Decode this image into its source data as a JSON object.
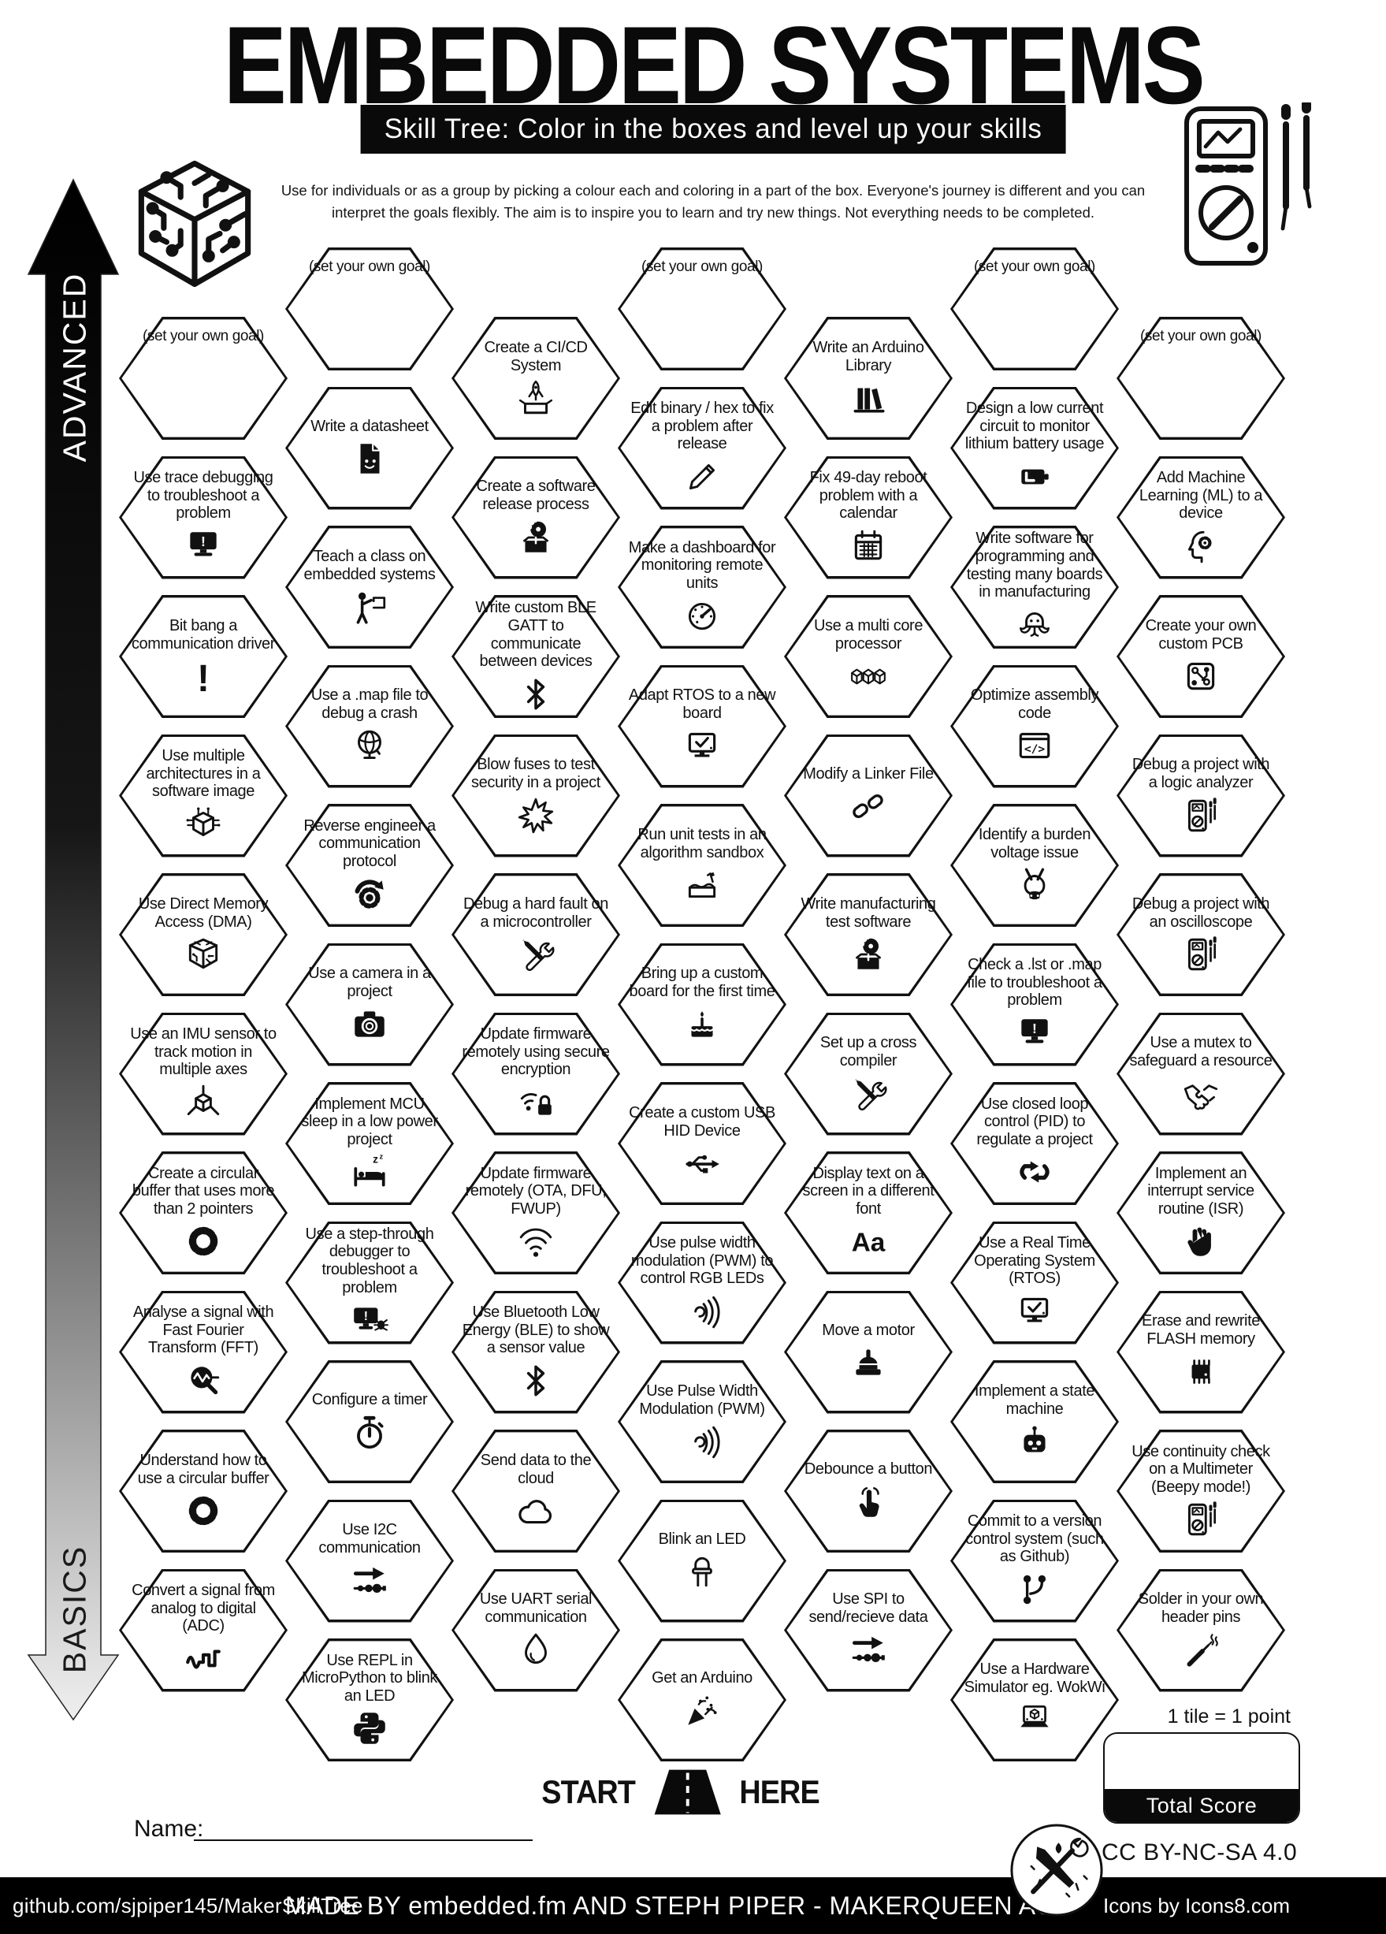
{
  "header": {
    "title": "EMBEDDED SYSTEMS",
    "subtitle": "Skill Tree:  Color in the boxes and level up your skills",
    "intro_line1": "Use for individuals or as a group by picking a colour each and coloring in a part of the box.  Everyone's journey is different and you can",
    "intro_line2": "interpret the goals flexibly.  The aim is to inspire you to learn and try new things. Not everything needs to be completed."
  },
  "side": {
    "advanced": "ADVANCED",
    "basics": "BASICS"
  },
  "goal_label": "(set your own goal)",
  "hexes": [
    {
      "col": 1,
      "row": 0,
      "goal": true,
      "label": "(set your own goal)",
      "icon": ""
    },
    {
      "col": 1,
      "row": 1,
      "label": "Use trace debugging to troubleshoot a problem",
      "icon": "monitor-alert"
    },
    {
      "col": 1,
      "row": 2,
      "label": "Bit bang a communication driver",
      "icon": "exclamation"
    },
    {
      "col": 1,
      "row": 3,
      "label": "Use multiple architectures in a software image",
      "icon": "arch-cube"
    },
    {
      "col": 1,
      "row": 4,
      "label": "Use Direct Memory Access (DMA)",
      "icon": "circuit-cube"
    },
    {
      "col": 1,
      "row": 5,
      "label": "Use an IMU sensor to track motion in multiple axes",
      "icon": "axis-cube"
    },
    {
      "col": 1,
      "row": 6,
      "label": "Create a circular buffer that uses more than 2 pointers",
      "icon": "ring"
    },
    {
      "col": 1,
      "row": 7,
      "label": "Analyse a signal with Fast Fourier Transform (FFT)",
      "icon": "fft"
    },
    {
      "col": 1,
      "row": 8,
      "label": "Understand how to use a circular buffer",
      "icon": "ring"
    },
    {
      "col": 1,
      "row": 9,
      "label": "Convert a signal from analog to digital (ADC)",
      "icon": "adc-wave"
    },
    {
      "col": 2,
      "row": 0,
      "goal": true,
      "label": "(set your own goal)",
      "icon": ""
    },
    {
      "col": 2,
      "row": 1,
      "label": "Write a datasheet",
      "icon": "doc-face"
    },
    {
      "col": 2,
      "row": 2,
      "label": "Teach a class on embedded systems",
      "icon": "teacher"
    },
    {
      "col": 2,
      "row": 3,
      "label": "Use a .map file to debug a crash",
      "icon": "globe"
    },
    {
      "col": 2,
      "row": 4,
      "label": "Reverse engineer a communication protocol",
      "icon": "gear-arrows"
    },
    {
      "col": 2,
      "row": 5,
      "label": "Use a camera in a project",
      "icon": "camera"
    },
    {
      "col": 2,
      "row": 6,
      "label": "Implement MCU sleep in a low power project",
      "icon": "bed"
    },
    {
      "col": 2,
      "row": 7,
      "label": "Use a step-through debugger to troubleshoot a problem",
      "icon": "monitor-bug"
    },
    {
      "col": 2,
      "row": 8,
      "label": "Configure a timer",
      "icon": "stopwatch"
    },
    {
      "col": 2,
      "row": 9,
      "label": "Use I2C communication",
      "icon": "bus-line"
    },
    {
      "col": 2,
      "row": 10,
      "label": "Use REPL in MicroPython to blink an LED",
      "icon": "python"
    },
    {
      "col": 3,
      "row": 0,
      "label": "Create a CI/CD System",
      "icon": "rocket-box"
    },
    {
      "col": 3,
      "row": 1,
      "label": "Create a software release process",
      "icon": "box-disc"
    },
    {
      "col": 3,
      "row": 2,
      "label": "Write custom BLE GATT to communicate between devices",
      "icon": "bluetooth"
    },
    {
      "col": 3,
      "row": 3,
      "label": "Blow fuses to test security in a project",
      "icon": "burst"
    },
    {
      "col": 3,
      "row": 4,
      "label": "Debug a hard fault on a microcontroller",
      "icon": "tools"
    },
    {
      "col": 3,
      "row": 5,
      "label": "Update firmware remotely using secure encryption",
      "icon": "wifi-lock"
    },
    {
      "col": 3,
      "row": 6,
      "label": "Update firmware remotely (OTA, DFU, FWUP)",
      "icon": "wifi"
    },
    {
      "col": 3,
      "row": 7,
      "label": "Use Bluetooth Low Energy (BLE) to show a sensor value",
      "icon": "bluetooth"
    },
    {
      "col": 3,
      "row": 8,
      "label": "Send data to the cloud",
      "icon": "cloud"
    },
    {
      "col": 3,
      "row": 9,
      "label": "Use UART serial communication",
      "icon": "drop"
    },
    {
      "col": 4,
      "row": 0,
      "goal": true,
      "label": "(set your own goal)",
      "icon": ""
    },
    {
      "col": 4,
      "row": 1,
      "label": "Edit binary / hex to fix a problem after release",
      "icon": "pencil"
    },
    {
      "col": 4,
      "row": 2,
      "label": "Make a dashboard for monitoring remote units",
      "icon": "gauge"
    },
    {
      "col": 4,
      "row": 3,
      "label": "Adapt RTOS to a new board",
      "icon": "monitor-check"
    },
    {
      "col": 4,
      "row": 4,
      "label": "Run unit tests in an algorithm sandbox",
      "icon": "sandbox"
    },
    {
      "col": 4,
      "row": 5,
      "label": "Bring up a custom board for the first time",
      "icon": "cake"
    },
    {
      "col": 4,
      "row": 6,
      "label": "Create a custom USB HID Device",
      "icon": "usb"
    },
    {
      "col": 4,
      "row": 7,
      "label": "Use pulse width modulation (PWM) to control RGB LEDs",
      "icon": "pwm"
    },
    {
      "col": 4,
      "row": 8,
      "label": "Use Pulse Width Modulation (PWM)",
      "icon": "pwm"
    },
    {
      "col": 4,
      "row": 9,
      "label": "Blink an LED",
      "icon": "led"
    },
    {
      "col": 4,
      "row": 10,
      "label": "Get an Arduino",
      "icon": "party"
    },
    {
      "col": 5,
      "row": 0,
      "label": "Write an Arduino Library",
      "icon": "books"
    },
    {
      "col": 5,
      "row": 1,
      "label": "Fix 49-day reboot problem with a calendar",
      "icon": "calendar"
    },
    {
      "col": 5,
      "row": 2,
      "label": "Use a multi core processor",
      "icon": "cubes3"
    },
    {
      "col": 5,
      "row": 3,
      "label": "Modify a Linker File",
      "icon": "chain"
    },
    {
      "col": 5,
      "row": 4,
      "label": "Write manufacturing test software",
      "icon": "box-disc"
    },
    {
      "col": 5,
      "row": 5,
      "label": "Set up a cross compiler",
      "icon": "tools"
    },
    {
      "col": 5,
      "row": 6,
      "label": "Display text on a screen in a different font",
      "icon": "aa"
    },
    {
      "col": 5,
      "row": 7,
      "label": "Move a motor",
      "icon": "motor"
    },
    {
      "col": 5,
      "row": 8,
      "label": "Debounce a button",
      "icon": "press"
    },
    {
      "col": 5,
      "row": 9,
      "label": "Use SPI to send/recieve data",
      "icon": "bus-line"
    },
    {
      "col": 6,
      "row": 0,
      "goal": true,
      "label": "(set your own goal)",
      "icon": ""
    },
    {
      "col": 6,
      "row": 1,
      "label": "Design a low current circuit to monitor lithium battery usage",
      "icon": "battery"
    },
    {
      "col": 6,
      "row": 2,
      "label": "Write software for programming and testing many boards in manufacturing",
      "icon": "octopus"
    },
    {
      "col": 6,
      "row": 3,
      "label": "Optimize assembly code",
      "icon": "code"
    },
    {
      "col": 6,
      "row": 4,
      "label": "Identify a burden voltage issue",
      "icon": "donkey"
    },
    {
      "col": 6,
      "row": 5,
      "label": "Check a .lst or .map file to troubleshoot a problem",
      "icon": "monitor-alert"
    },
    {
      "col": 6,
      "row": 6,
      "label": "Use closed loop control (PID) to regulate a project",
      "icon": "pid"
    },
    {
      "col": 6,
      "row": 7,
      "label": "Use a Real Time Operating System (RTOS)",
      "icon": "monitor-check"
    },
    {
      "col": 6,
      "row": 8,
      "label": "Implement a state machine",
      "icon": "robot"
    },
    {
      "col": 6,
      "row": 9,
      "label": "Commit to a version control system (such as Github)",
      "icon": "git"
    },
    {
      "col": 6,
      "row": 10,
      "label": "Use a Hardware Simulator eg. WokWi",
      "icon": "laptop-sim"
    },
    {
      "col": 7,
      "row": 0,
      "goal": true,
      "label": "(set your own goal)",
      "icon": ""
    },
    {
      "col": 7,
      "row": 1,
      "label": "Add Machine Learning (ML) to a device",
      "icon": "head-gear"
    },
    {
      "col": 7,
      "row": 2,
      "label": "Create your own custom PCB",
      "icon": "pcb"
    },
    {
      "col": 7,
      "row": 3,
      "label": "Debug a project with a logic analyzer",
      "icon": "multimeter"
    },
    {
      "col": 7,
      "row": 4,
      "label": "Debug a project with an oscilloscope",
      "icon": "multimeter"
    },
    {
      "col": 7,
      "row": 5,
      "label": "Use a mutex to safeguard a resource",
      "icon": "handshake"
    },
    {
      "col": 7,
      "row": 6,
      "label": "Implement an interrupt service routine (ISR)",
      "icon": "hand"
    },
    {
      "col": 7,
      "row": 7,
      "label": "Erase and rewrite FLASH memory",
      "icon": "chip"
    },
    {
      "col": 7,
      "row": 8,
      "label": "Use continuity check on a Multimeter (Beepy mode!)",
      "icon": "multimeter"
    },
    {
      "col": 7,
      "row": 9,
      "label": "Solder in your own header pins",
      "icon": "solder"
    }
  ],
  "start_here": {
    "start": "START",
    "here": "HERE"
  },
  "name_label": "Name:",
  "score": {
    "note": "1 tile = 1 point",
    "total": "Total Score"
  },
  "license": "CC BY-NC-SA 4.0",
  "footer": {
    "left": "github.com/sjpiper145/MakerSkillTree",
    "center": "MADE BY embedded.fm AND STEPH PIPER  -  MAKERQUEEN AU",
    "right": "Icons by Icons8.com"
  },
  "colors": {
    "ink": "#111111",
    "paper": "#ffffff"
  }
}
